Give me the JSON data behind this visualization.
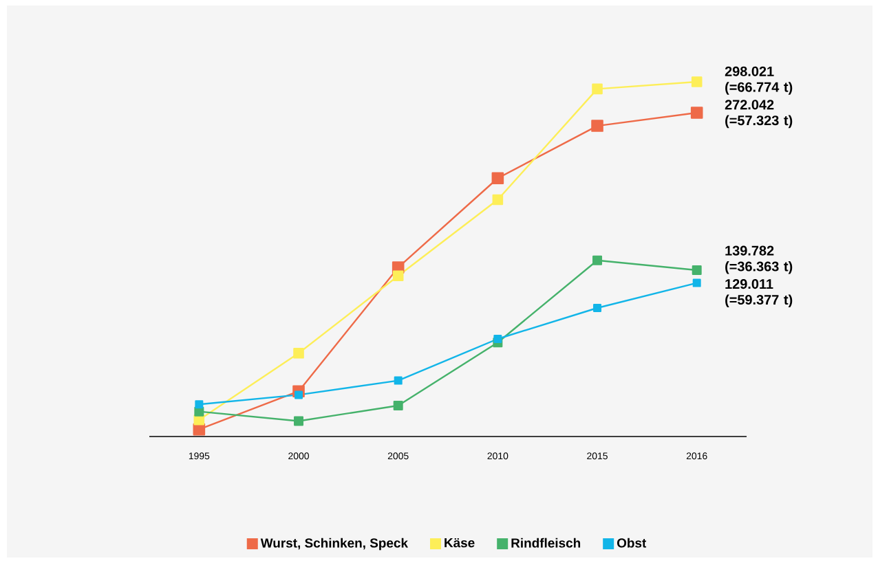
{
  "chart_data": {
    "type": "line",
    "categories": [
      "1995",
      "2000",
      "2005",
      "2010",
      "2015",
      "2016"
    ],
    "series": [
      {
        "name": "Wurst, Schinken, Speck",
        "color": "#ee6a48",
        "values": [
          6,
          38,
          142,
          217,
          261,
          272.042
        ],
        "value_labels": [
          null,
          null,
          null,
          null,
          null,
          "272.042 (=57.323 t)"
        ]
      },
      {
        "name": "Käse",
        "color": "#fdee58",
        "values": [
          14,
          70,
          135,
          199,
          292,
          298.021
        ],
        "value_labels": [
          null,
          null,
          null,
          null,
          null,
          "298.021 (=66.774 t)"
        ]
      },
      {
        "name": "Rindfleisch",
        "color": "#45b26b",
        "values": [
          21,
          13,
          26,
          79,
          148,
          139.782
        ],
        "value_labels": [
          null,
          null,
          null,
          null,
          null,
          "139.782 (=36.363 t)"
        ]
      },
      {
        "name": "Obst",
        "color": "#12b5e8",
        "values": [
          27,
          35,
          47,
          82,
          108,
          129.011
        ],
        "value_labels": [
          null,
          null,
          null,
          null,
          null,
          "129.011 (=59.377 t)"
        ]
      }
    ],
    "legend": "bottom",
    "marker": "square",
    "line_style": "solid"
  }
}
